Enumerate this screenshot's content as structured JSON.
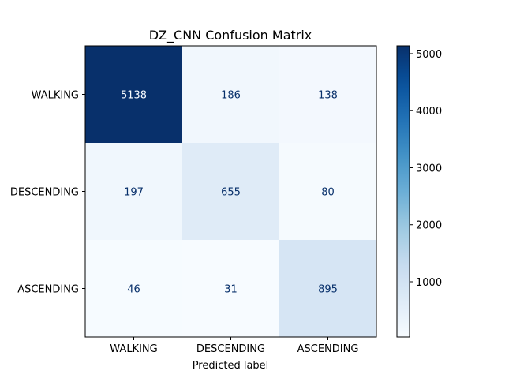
{
  "chart_data": {
    "type": "heatmap",
    "title": "DZ_CNN Confusion Matrix",
    "xlabel": "Predicted label",
    "ylabel": "",
    "x_categories": [
      "WALKING",
      "DESCENDING",
      "ASCENDING"
    ],
    "y_categories": [
      "WALKING",
      "DESCENDING",
      "ASCENDING"
    ],
    "values": [
      [
        5138,
        186,
        138
      ],
      [
        197,
        655,
        80
      ],
      [
        46,
        31,
        895
      ]
    ],
    "colormap": "Blues",
    "colorbar": {
      "range": [
        31,
        5138
      ],
      "ticks": [
        1000,
        2000,
        3000,
        4000,
        5000
      ]
    },
    "grid": false
  },
  "colors": {
    "low": "#f7fbff",
    "high": "#08306b",
    "text_dark": "#08306b",
    "text_light": "#f7fbff",
    "axis": "#000000"
  }
}
